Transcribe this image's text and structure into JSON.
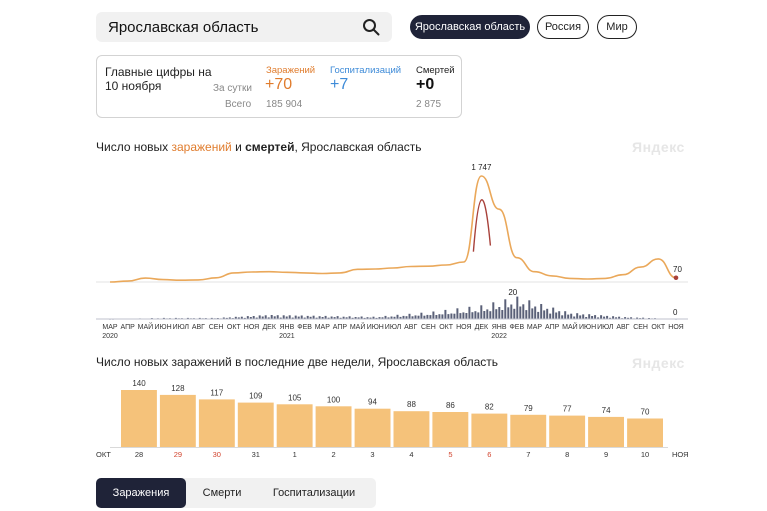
{
  "search": {
    "value": "Ярославская область"
  },
  "scope": [
    "Ярославская область",
    "Россия",
    "Мир"
  ],
  "summary": {
    "title": "Главные цифры на 10 ноября",
    "per_day_label": "За сутки",
    "total_label": "Всего",
    "columns": [
      {
        "label": "Заражений",
        "per_day": "+70",
        "total": "185 904",
        "color": "#e07c2d"
      },
      {
        "label": "Госпитализаций",
        "per_day": "+7",
        "total": "",
        "color": "#3e8bd8"
      },
      {
        "label": "Смертей",
        "per_day": "+0",
        "total": "2 875",
        "color": "#222222"
      }
    ]
  },
  "chart1": {
    "title_prefix": "Число новых ",
    "title_infections": "заражений",
    "title_and": " и ",
    "title_deaths": "смертей",
    "title_suffix": ", Ярославская область",
    "watermark": "Яндекс"
  },
  "chart2": {
    "title": "Число новых заражений в последние две недели, Ярославская область",
    "watermark": "Яндекс"
  },
  "tabs": [
    "Заражения",
    "Смерти",
    "Госпитализации"
  ],
  "colors": {
    "accent": "#1f2338",
    "infections": "#e07c2d",
    "hospital": "#3e8bd8",
    "bar": "#f5c27a",
    "deaths": "#5a6078",
    "weekend": "#d2452f"
  },
  "chart_data": [
    {
      "type": "line",
      "title": "Число новых заражений и смертей, Ярославская область",
      "series": [
        {
          "name": "заражений",
          "x": [
            "2020-03",
            "2020-04",
            "2020-05",
            "2020-06",
            "2020-07",
            "2020-08",
            "2020-09",
            "2020-10",
            "2020-11",
            "2020-12",
            "2021-01",
            "2021-02",
            "2021-03",
            "2021-04",
            "2021-05",
            "2021-06",
            "2021-07",
            "2021-08",
            "2021-09",
            "2021-10",
            "2021-11",
            "2021-12",
            "2022-01",
            "2022-02",
            "2022-03",
            "2022-04",
            "2022-05",
            "2022-06",
            "2022-07",
            "2022-08",
            "2022-09",
            "2022-10",
            "2022-11"
          ],
          "values": [
            0,
            15,
            65,
            40,
            30,
            35,
            70,
            150,
            165,
            170,
            160,
            150,
            140,
            150,
            210,
            215,
            230,
            255,
            260,
            280,
            330,
            1747,
            1200,
            400,
            170,
            100,
            60,
            50,
            60,
            120,
            245,
            380,
            70
          ],
          "end_label": "70",
          "peak_label": "1 747"
        },
        {
          "name": "смертей",
          "x": [
            "2020-03",
            "2020-06",
            "2020-09",
            "2020-12",
            "2021-03",
            "2021-06",
            "2021-09",
            "2021-12",
            "2022-02",
            "2022-05",
            "2022-08",
            "2022-11"
          ],
          "values": [
            0,
            1,
            1,
            4,
            3,
            2,
            6,
            12,
            20,
            6,
            2,
            0
          ],
          "peak_label": "20",
          "end_label": "0"
        }
      ],
      "x_tick_labels": [
        "МАР",
        "АПР",
        "МАЙ",
        "ИЮН",
        "ИЮЛ",
        "АВГ",
        "СЕН",
        "ОКТ",
        "НОЯ",
        "ДЕК",
        "ЯНВ",
        "ФЕВ",
        "МАР",
        "АПР",
        "МАЙ",
        "ИЮН",
        "ИЮЛ",
        "АВГ",
        "СЕН",
        "ОКТ",
        "НОЯ",
        "ДЕК",
        "ЯНВ",
        "ФЕВ",
        "МАР",
        "АПР",
        "МАЙ",
        "ИЮН",
        "ИЮЛ",
        "АВГ",
        "СЕН",
        "ОКТ",
        "НОЯ"
      ],
      "x_year_labels": [
        {
          "index": 0,
          "label": "2020"
        },
        {
          "index": 10,
          "label": "2021"
        },
        {
          "index": 22,
          "label": "2022"
        }
      ]
    },
    {
      "type": "bar",
      "title": "Число новых заражений в последние две недели, Ярославская область",
      "categories": [
        "28",
        "29",
        "30",
        "31",
        "1",
        "2",
        "3",
        "4",
        "5",
        "6",
        "7",
        "8",
        "9",
        "10"
      ],
      "weekend": [
        false,
        true,
        true,
        false,
        false,
        false,
        false,
        false,
        true,
        true,
        false,
        false,
        false,
        false
      ],
      "values": [
        140,
        128,
        117,
        109,
        105,
        100,
        94,
        88,
        86,
        82,
        79,
        77,
        74,
        70
      ],
      "month_start": "ОКТ",
      "month_end": "НОЯ"
    }
  ]
}
